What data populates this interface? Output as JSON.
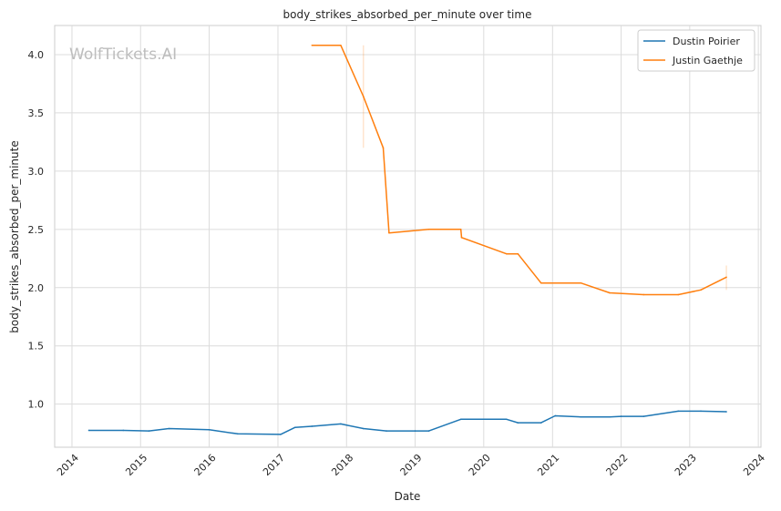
{
  "watermark": "WolfTickets.AI",
  "chart_data": {
    "type": "line",
    "title": "body_strikes_absorbed_per_minute over time",
    "xlabel": "Date",
    "ylabel": "body_strikes_absorbed_per_minute",
    "xlim": [
      "2013-10-01",
      "2024-01-15"
    ],
    "ylim": [
      0.63,
      4.25
    ],
    "x_ticks": [
      "2014",
      "2015",
      "2016",
      "2017",
      "2018",
      "2019",
      "2020",
      "2021",
      "2022",
      "2023",
      "2024"
    ],
    "y_ticks": [
      "1.0",
      "1.5",
      "2.0",
      "2.5",
      "3.0",
      "3.5",
      "4.0"
    ],
    "grid": true,
    "legend_position": "top-right",
    "series": [
      {
        "name": "Dustin Poirier",
        "color": "#1f77b4",
        "x": [
          "2014-04-01",
          "2014-10-01",
          "2015-02-15",
          "2015-06-01",
          "2016-01-01",
          "2016-06-01",
          "2017-01-15",
          "2017-04-01",
          "2017-07-01",
          "2017-12-01",
          "2018-04-01",
          "2018-08-01",
          "2019-01-01",
          "2019-03-15",
          "2019-09-01",
          "2020-05-01",
          "2020-07-01",
          "2020-11-01",
          "2021-01-15",
          "2021-06-01",
          "2021-11-01",
          "2022-01-01",
          "2022-05-01",
          "2022-11-01",
          "2023-03-01",
          "2023-07-15"
        ],
        "y": [
          0.775,
          0.775,
          0.77,
          0.79,
          0.78,
          0.745,
          0.74,
          0.8,
          0.81,
          0.83,
          0.79,
          0.77,
          0.77,
          0.77,
          0.87,
          0.87,
          0.84,
          0.84,
          0.9,
          0.89,
          0.89,
          0.895,
          0.895,
          0.94,
          0.94,
          0.935
        ]
      },
      {
        "name": "Justin Gaethje",
        "color": "#ff7f0e",
        "x": [
          "2017-07-01",
          "2017-12-01",
          "2018-04-01",
          "2018-07-15",
          "2018-08-15",
          "2019-03-15",
          "2019-09-01",
          "2019-09-05",
          "2020-05-01",
          "2020-07-01",
          "2020-11-01",
          "2021-06-01",
          "2021-11-01",
          "2022-05-01",
          "2022-11-01",
          "2023-03-01",
          "2023-07-15"
        ],
        "y": [
          4.08,
          4.08,
          3.64,
          3.2,
          2.47,
          2.5,
          2.5,
          2.43,
          2.29,
          2.29,
          2.04,
          2.04,
          1.955,
          1.94,
          1.94,
          1.98,
          2.09
        ],
        "errorbars": [
          {
            "x": "2018-04-01",
            "low": 3.2,
            "high": 4.08
          },
          {
            "x": "2023-07-15",
            "low": 1.98,
            "high": 2.19
          }
        ]
      }
    ]
  }
}
